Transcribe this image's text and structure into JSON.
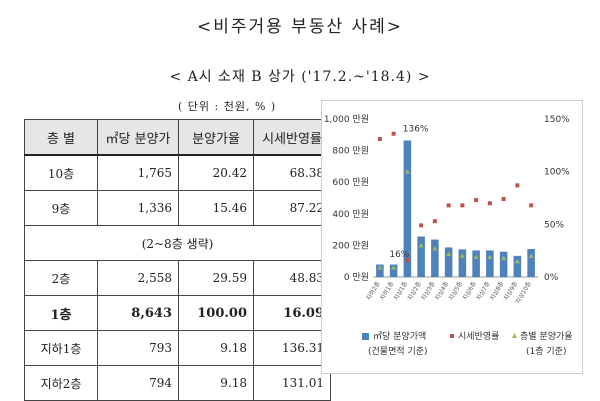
{
  "title": "<비주거용 부동산 사례>",
  "subtitle": "< A시 소재 B 상가 ('17.2.~'18.4) >",
  "unit_note": "( 단위 : 천원, % )",
  "table": {
    "headers": [
      "층 별",
      "㎡당 분양가",
      "분양가율",
      "시세반영률"
    ],
    "rows": [
      {
        "floor": "10층",
        "price": "1,765",
        "ratio": "20.42",
        "reflect": "68.38"
      },
      {
        "floor": "9층",
        "price": "1,336",
        "ratio": "15.46",
        "reflect": "87.22"
      },
      {
        "span": "(2~8층 생략)"
      },
      {
        "floor": "2층",
        "price": "2,558",
        "ratio": "29.59",
        "reflect": "48.83"
      },
      {
        "floor": "1층",
        "price": "8,643",
        "ratio": "100.00",
        "reflect": "16.09",
        "bold": true
      },
      {
        "floor": "지하1층",
        "price": "793",
        "ratio": "9.18",
        "reflect": "136.31"
      },
      {
        "floor": "지하2층",
        "price": "794",
        "ratio": "9.18",
        "reflect": "131.01"
      }
    ]
  },
  "chart_data": {
    "type": "bar",
    "categories": [
      "지하2층",
      "지하1층",
      "지상1층",
      "지상2층",
      "지상3층",
      "지상4층",
      "지상5층",
      "지상6층",
      "지상7층",
      "지상8층",
      "지상9층",
      "지상10층"
    ],
    "y_left": {
      "ticks": [
        "0 만원",
        "200 만원",
        "400 만원",
        "600 만원",
        "800 만원",
        "1,000 만원"
      ],
      "ylim": [
        0,
        1000
      ]
    },
    "y_right": {
      "ticks": [
        "0%",
        "50%",
        "100%",
        "150%"
      ],
      "ylim": [
        0,
        150
      ]
    },
    "series": [
      {
        "name": "㎡당 분양가액",
        "type": "bar",
        "color": "#4f81bd",
        "values": [
          79,
          79,
          864,
          256,
          237,
          187,
          175,
          168,
          168,
          160,
          134,
          177
        ]
      },
      {
        "name": "시세반영률",
        "type": "marker",
        "color": "#c0504d",
        "values": [
          131,
          136,
          16,
          49,
          53,
          68,
          68,
          73,
          70,
          74,
          87,
          68
        ]
      },
      {
        "name": "층별 분양가율",
        "type": "marker",
        "color": "#9bbb59",
        "values": [
          9,
          9,
          100,
          30,
          27,
          22,
          20,
          19,
          19,
          18,
          15,
          20
        ]
      }
    ],
    "annotations": [
      "136%",
      "16%"
    ],
    "legend": [
      "㎡당 분양가액",
      "(건물면적 기준)",
      "시세반영률",
      "층별 분양가율",
      "(1층 기준)"
    ]
  }
}
